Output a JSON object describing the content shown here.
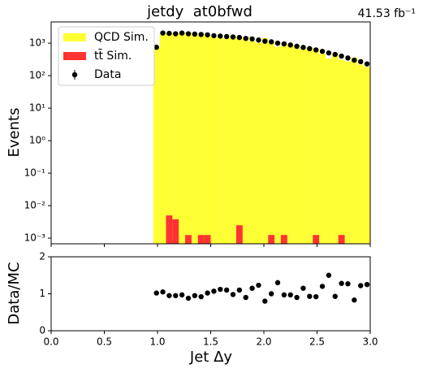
{
  "chart_data": [
    {
      "type": "histogram",
      "title": "jetdy  at0bfwd",
      "annotation": "41.53 fb⁻¹",
      "ylabel": "Events",
      "bins": [
        0.96,
        1.02,
        1.08,
        1.14,
        1.2,
        1.26,
        1.32,
        1.38,
        1.44,
        1.5,
        1.56,
        1.62,
        1.68,
        1.74,
        1.8,
        1.86,
        1.92,
        1.98,
        2.04,
        2.1,
        2.16,
        2.22,
        2.28,
        2.34,
        2.4,
        2.46,
        2.52,
        2.58,
        2.64,
        2.7,
        2.76,
        2.82,
        2.88,
        2.94,
        3.0
      ],
      "series": [
        {
          "name": "QCD Sim.",
          "color": "#ffff33",
          "style": "fill",
          "values": [
            740,
            1950,
            2100,
            2050,
            2100,
            2200,
            2000,
            2000,
            1750,
            1600,
            1470,
            1450,
            1580,
            1360,
            1550,
            1170,
            1020,
            1440,
            1100,
            770,
            980,
            910,
            890,
            640,
            730,
            670,
            470,
            333,
            480,
            310,
            275,
            360,
            220,
            185
          ]
        },
        {
          "name": "tt̄ Sim.",
          "color": "#ff3333",
          "style": "fill",
          "values": [
            0,
            0,
            0.005,
            0.0038,
            0,
            0.00125,
            0,
            0.00125,
            0.00125,
            0,
            0,
            0,
            0,
            0.0025,
            0,
            0,
            0,
            0,
            0.00125,
            0,
            0.00125,
            0,
            0,
            0,
            0,
            0.00125,
            0,
            0,
            0,
            0.00125,
            0,
            0,
            0,
            0
          ]
        },
        {
          "name": "Data",
          "color": "#000000",
          "style": "point",
          "values": [
            750,
            2050,
            2000,
            1950,
            2050,
            1950,
            1900,
            1850,
            1800,
            1700,
            1650,
            1600,
            1550,
            1500,
            1400,
            1350,
            1250,
            1150,
            1100,
            1000,
            950,
            880,
            800,
            740,
            680,
            620,
            560,
            500,
            450,
            400,
            350,
            300,
            270,
            230
          ]
        }
      ],
      "xlim": [
        0,
        3.0
      ],
      "ylim": [
        0.00067,
        4500
      ],
      "log_scale": true,
      "legend": "upper left",
      "yticks": [
        {
          "value": 0.001,
          "label": "10⁻³"
        },
        {
          "value": 0.01,
          "label": "10⁻²"
        },
        {
          "value": 0.1,
          "label": "10⁻¹"
        },
        {
          "value": 1,
          "label": "10⁰"
        },
        {
          "value": 10,
          "label": "10¹"
        },
        {
          "value": 100,
          "label": "10²"
        },
        {
          "value": 1000,
          "label": "10³"
        }
      ]
    },
    {
      "type": "scatter",
      "ylabel": "Data/MC",
      "xlabel": "Jet Δy",
      "color": "#000000",
      "x": [
        0.99,
        1.05,
        1.11,
        1.17,
        1.23,
        1.29,
        1.35,
        1.41,
        1.47,
        1.53,
        1.59,
        1.65,
        1.71,
        1.77,
        1.83,
        1.89,
        1.95,
        2.01,
        2.07,
        2.13,
        2.19,
        2.25,
        2.31,
        2.37,
        2.43,
        2.49,
        2.55,
        2.61,
        2.67,
        2.73,
        2.79,
        2.85,
        2.91,
        2.97
      ],
      "values": [
        1.02,
        1.05,
        0.95,
        0.95,
        0.97,
        0.88,
        0.95,
        0.92,
        1.02,
        1.07,
        1.12,
        1.1,
        0.98,
        1.1,
        0.9,
        1.15,
        1.23,
        0.8,
        1.0,
        1.3,
        0.97,
        0.97,
        0.9,
        1.15,
        0.93,
        0.92,
        1.2,
        1.5,
        0.93,
        1.28,
        1.27,
        0.83,
        1.22,
        1.25
      ],
      "xlim": [
        0,
        3.0
      ],
      "ylim": [
        0,
        2
      ],
      "xticks": [
        {
          "value": 0,
          "label": "0.0"
        },
        0.5,
        {
          "value": 1,
          "label": "1.0"
        },
        1.5,
        {
          "value": 2,
          "label": "2.0"
        },
        2.5,
        {
          "value": 3,
          "label": "3.0"
        }
      ],
      "yticks": [
        0,
        1,
        2
      ]
    }
  ]
}
